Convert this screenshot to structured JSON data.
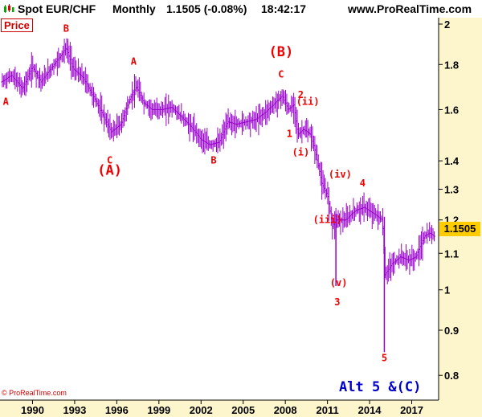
{
  "header": {
    "instrument": "Spot EUR/CHF",
    "period": "Monthly",
    "quote": "1.1505 (-0.08%)",
    "time": "18:42:17",
    "site": "www.ProRealTime.com"
  },
  "price_label": "Price",
  "footer": {
    "copyright": "© ProRealTime.com"
  },
  "colors": {
    "candles": "#9900cc",
    "wave_labels": "#ee0000",
    "alt_label": "#0000cc",
    "last_price_badge": "#ffcc00",
    "axis_panel": "#fdf6cc"
  },
  "chart_data": {
    "type": "ohlc",
    "title": "Spot EUR/CHF Monthly",
    "last_price": "1.1505",
    "annotation": "Alt 5 &(C)",
    "x_ticks": [
      "1990",
      "1993",
      "1996",
      "1999",
      "2002",
      "2005",
      "2008",
      "2011",
      "2014",
      "2017"
    ],
    "y_ticks": [
      "2",
      "1.8",
      "1.6",
      "1.4",
      "1.3",
      "1.2",
      "1.1",
      "1",
      "0.9",
      "0.8"
    ],
    "y_scale": "log",
    "xlim": [
      1987.8,
      2018.8
    ],
    "ylim": [
      0.75,
      2.0
    ],
    "price_path": [
      [
        1987.8,
        1.72
      ],
      [
        1988.5,
        1.75
      ],
      [
        1989.3,
        1.69
      ],
      [
        1990.0,
        1.79
      ],
      [
        1990.6,
        1.72
      ],
      [
        1991.3,
        1.78
      ],
      [
        1992.0,
        1.84
      ],
      [
        1992.4,
        1.88
      ],
      [
        1992.9,
        1.78
      ],
      [
        1993.6,
        1.74
      ],
      [
        1994.3,
        1.66
      ],
      [
        1995.0,
        1.58
      ],
      [
        1995.6,
        1.51
      ],
      [
        1996.3,
        1.54
      ],
      [
        1996.9,
        1.64
      ],
      [
        1997.4,
        1.7
      ],
      [
        1997.9,
        1.63
      ],
      [
        1998.5,
        1.6
      ],
      [
        1999.2,
        1.6
      ],
      [
        1999.9,
        1.61
      ],
      [
        2000.6,
        1.57
      ],
      [
        2001.3,
        1.53
      ],
      [
        2002.0,
        1.48
      ],
      [
        2002.6,
        1.46
      ],
      [
        2003.3,
        1.47
      ],
      [
        2003.9,
        1.55
      ],
      [
        2004.5,
        1.54
      ],
      [
        2005.2,
        1.55
      ],
      [
        2005.9,
        1.56
      ],
      [
        2006.6,
        1.59
      ],
      [
        2007.3,
        1.63
      ],
      [
        2007.8,
        1.66
      ],
      [
        2008.2,
        1.6
      ],
      [
        2008.6,
        1.62
      ],
      [
        2008.9,
        1.5
      ],
      [
        2009.3,
        1.52
      ],
      [
        2009.8,
        1.5
      ],
      [
        2010.2,
        1.42
      ],
      [
        2010.6,
        1.32
      ],
      [
        2011.0,
        1.28
      ],
      [
        2011.35,
        1.18
      ],
      [
        2011.6,
        1.2
      ],
      [
        2012.3,
        1.2
      ],
      [
        2013.0,
        1.23
      ],
      [
        2013.6,
        1.24
      ],
      [
        2014.3,
        1.22
      ],
      [
        2014.9,
        1.2
      ],
      [
        2015.1,
        1.04
      ],
      [
        2015.6,
        1.07
      ],
      [
        2016.2,
        1.09
      ],
      [
        2016.8,
        1.08
      ],
      [
        2017.3,
        1.09
      ],
      [
        2017.9,
        1.15
      ],
      [
        2018.3,
        1.16
      ],
      [
        2018.6,
        1.15
      ]
    ],
    "spikes": [
      {
        "x": 2011.6,
        "low": 1.01,
        "high": 1.22,
        "label": "(v)"
      },
      {
        "x": 2015.05,
        "low": 0.85,
        "high": 1.21,
        "label": "5"
      }
    ],
    "wave_labels": [
      {
        "text": "A",
        "x": 1988.1,
        "y": 1.62
      },
      {
        "text": "B",
        "x": 1992.4,
        "y": 1.96
      },
      {
        "text": "A",
        "x": 1997.2,
        "y": 1.8
      },
      {
        "text": "C",
        "x": 1995.5,
        "y": 1.39
      },
      {
        "text": "(A)",
        "x": 1995.5,
        "y": 1.35,
        "big": true
      },
      {
        "text": "B",
        "x": 2002.9,
        "y": 1.39
      },
      {
        "text": "(B)",
        "x": 2007.7,
        "y": 1.84,
        "big": true
      },
      {
        "text": "C",
        "x": 2007.7,
        "y": 1.74
      },
      {
        "text": "2",
        "x": 2009.1,
        "y": 1.65
      },
      {
        "text": "(ii)",
        "x": 2009.6,
        "y": 1.62
      },
      {
        "text": "1",
        "x": 2008.3,
        "y": 1.49
      },
      {
        "text": "(i)",
        "x": 2009.1,
        "y": 1.42
      },
      {
        "text": "(iv)",
        "x": 2011.9,
        "y": 1.34
      },
      {
        "text": "4",
        "x": 2013.5,
        "y": 1.31
      },
      {
        "text": "(iii)",
        "x": 2011.0,
        "y": 1.19
      },
      {
        "text": "(v)",
        "x": 2011.8,
        "y": 1.01
      },
      {
        "text": "3",
        "x": 2011.7,
        "y": 0.96
      },
      {
        "text": "5",
        "x": 2015.05,
        "y": 0.83
      }
    ]
  }
}
